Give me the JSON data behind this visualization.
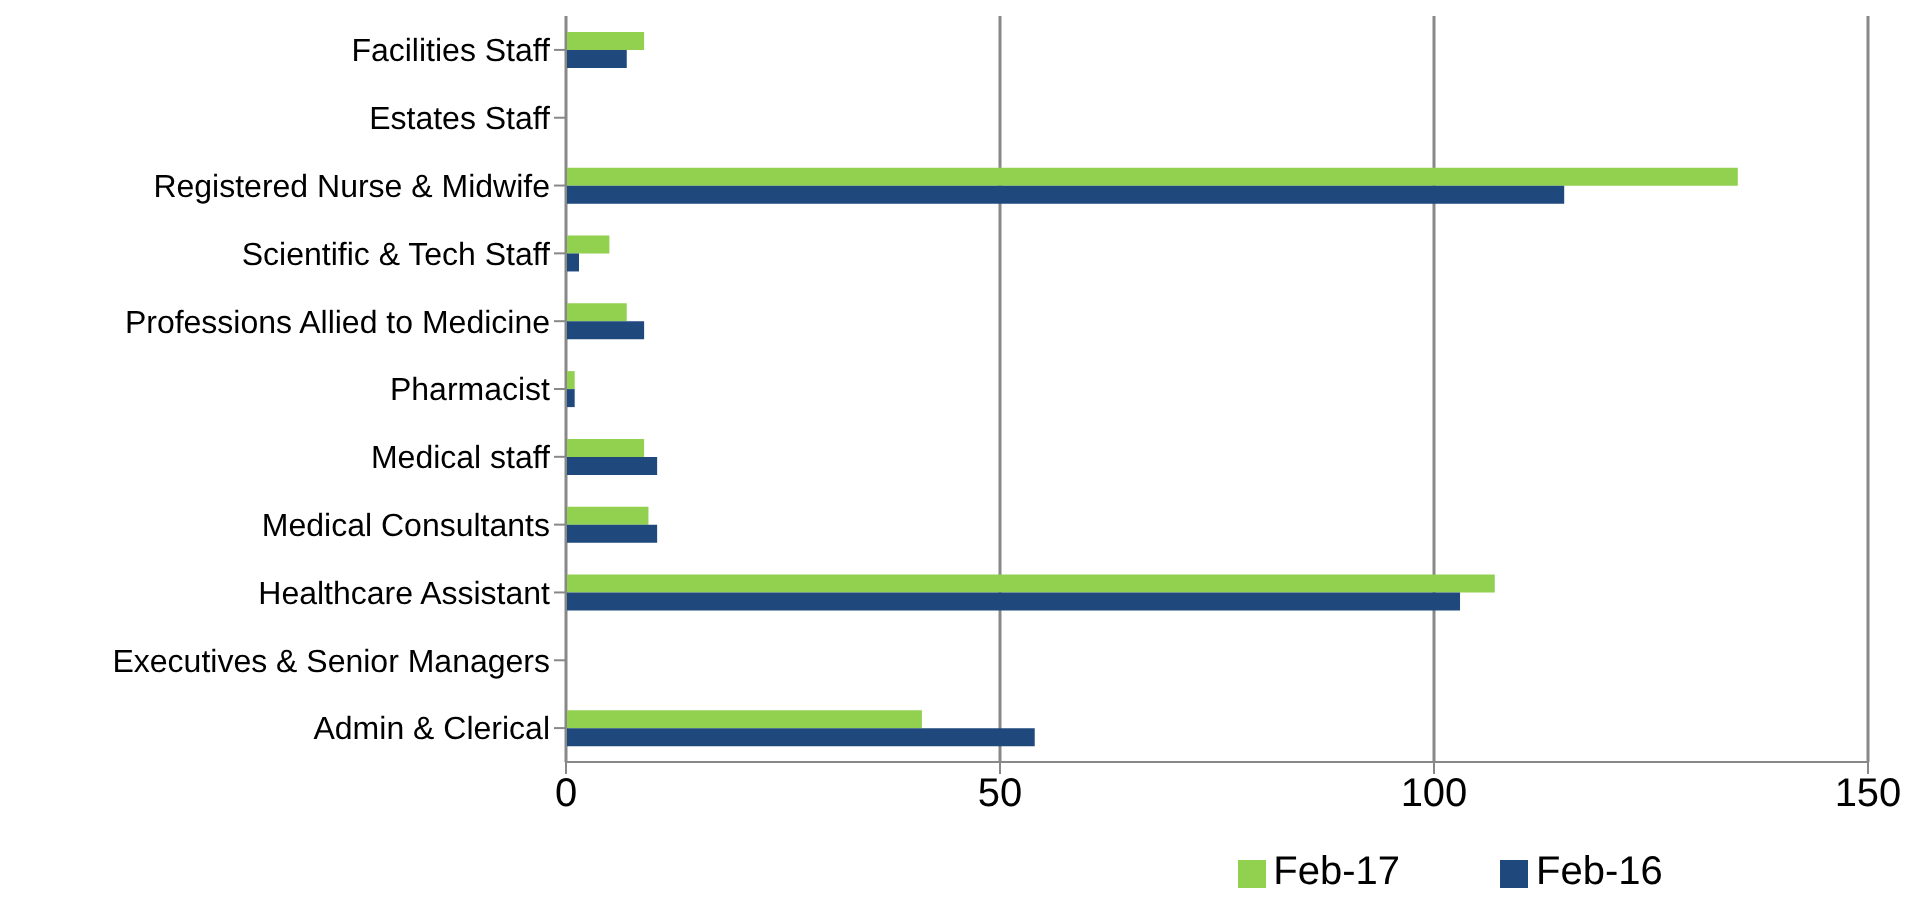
{
  "chart_data": {
    "type": "bar",
    "orientation": "horizontal",
    "categories": [
      "Facilities Staff",
      "Estates Staff",
      "Registered Nurse & Midwife",
      "Scientific & Tech Staff",
      "Professions Allied to Medicine",
      "Pharmacist",
      "Medical staff",
      "Medical Consultants",
      "Healthcare Assistant",
      "Executives & Senior Managers",
      "Admin & Clerical"
    ],
    "series": [
      {
        "name": "Feb-17",
        "color": "#92d050",
        "values": [
          9,
          0,
          135,
          5,
          7,
          1,
          9,
          9.5,
          107,
          0,
          41
        ]
      },
      {
        "name": "Feb-16",
        "color": "#1f497d",
        "values": [
          7,
          0,
          115,
          1.5,
          9,
          1,
          10.5,
          10.5,
          103,
          0,
          54
        ]
      }
    ],
    "xlim": [
      0,
      150
    ],
    "xticks": [
      0,
      50,
      100,
      150
    ],
    "grid": "x",
    "legend": "bottom"
  }
}
